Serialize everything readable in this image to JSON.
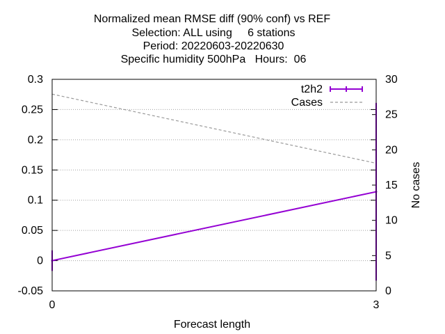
{
  "chart_data": {
    "type": "line",
    "title_lines": [
      "Normalized mean RMSE diff (90% conf) vs REF",
      "Selection: ALL using     6 stations",
      "Period: 20220603-20220630",
      "Specific humidity 500hPa   Hours:  06"
    ],
    "xlabel": "Forecast length",
    "ylabel": "",
    "y2label": "No cases",
    "xlim": [
      0,
      3
    ],
    "ylim": [
      -0.05,
      0.3
    ],
    "y2lim": [
      0,
      30
    ],
    "x_ticks": [
      "0",
      "3"
    ],
    "y_ticks": [
      "-0.05",
      "0",
      "0.05",
      "0.1",
      "0.15",
      "0.2",
      "0.25",
      "0.3"
    ],
    "y2_ticks": [
      "0",
      "5",
      "10",
      "15",
      "20",
      "25",
      "30"
    ],
    "grid": true,
    "legend_position": "top-right",
    "series": [
      {
        "name": "t2h2",
        "axis": "y",
        "color": "#9400d3",
        "style": "solid-errorbars",
        "x": [
          0,
          3
        ],
        "values": [
          0.0,
          0.114
        ],
        "err_low": [
          -0.017,
          -0.033
        ],
        "err_high": [
          0.017,
          0.261
        ]
      },
      {
        "name": "Cases",
        "axis": "y2",
        "color": "#999999",
        "style": "dashed",
        "x": [
          0,
          3
        ],
        "values": [
          27.9,
          18.1
        ]
      }
    ]
  }
}
